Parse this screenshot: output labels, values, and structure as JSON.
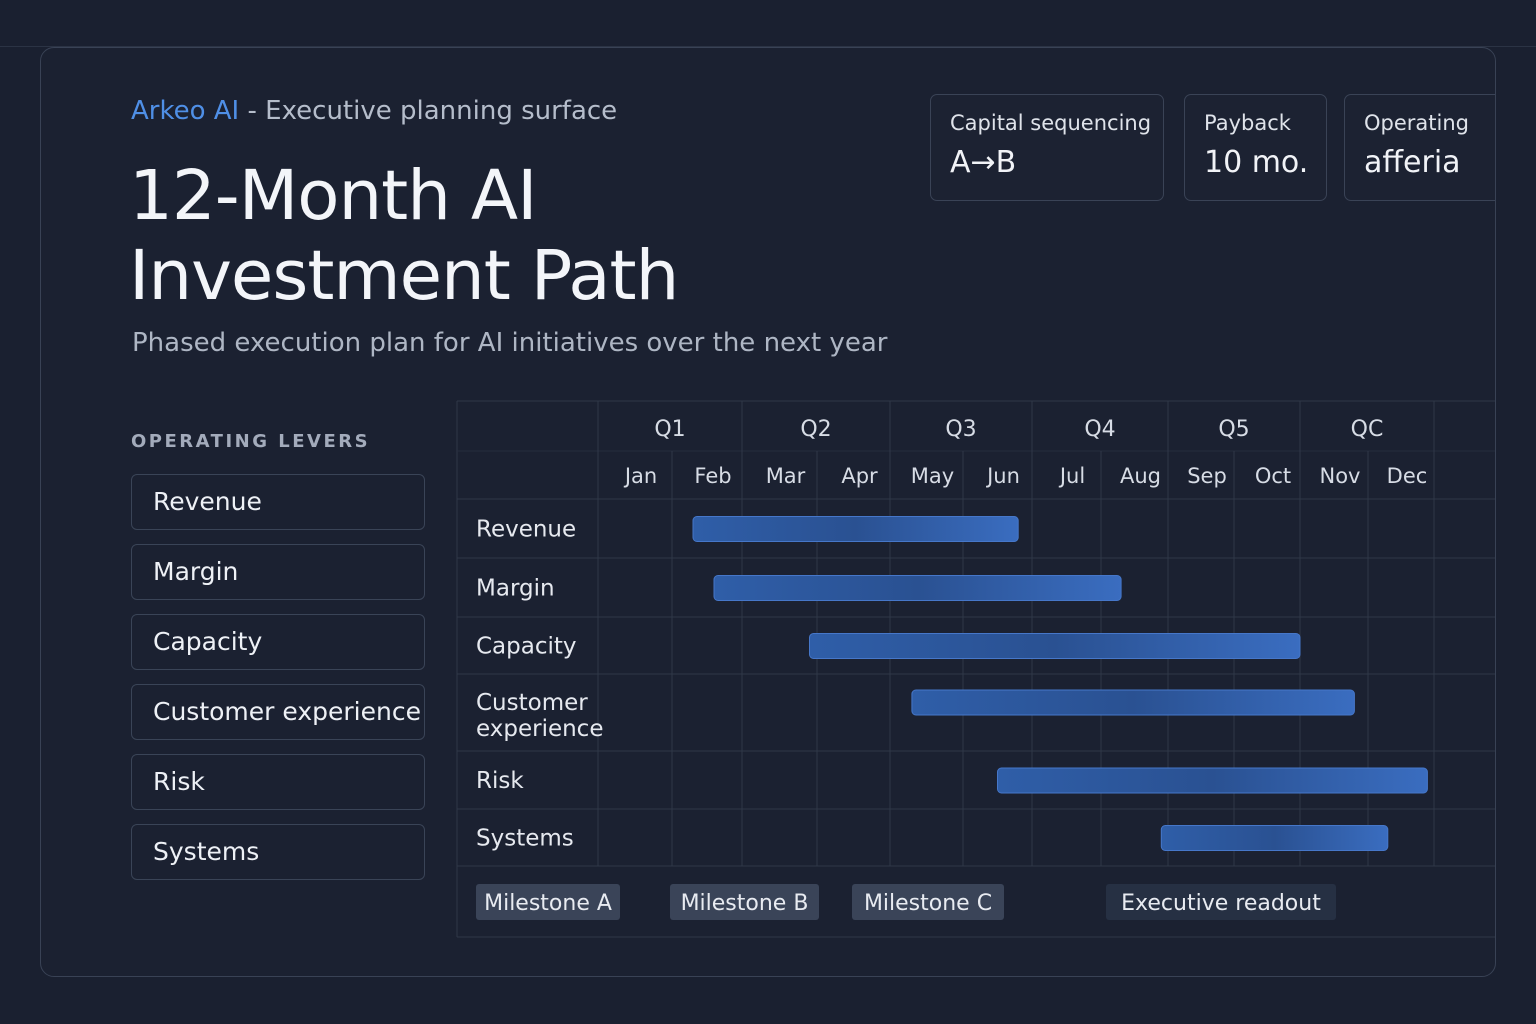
{
  "header": {
    "brand": "Arkeo AI",
    "eyebrow_rest": " - Executive planning surface",
    "title_line1": "12-Month AI",
    "title_line2": "Investment Path",
    "subtitle": "Phased execution plan for AI initiatives over the next year"
  },
  "kpis": [
    {
      "label": "Capital sequencing",
      "value": "A→B"
    },
    {
      "label": "Payback",
      "value": "10 mo."
    },
    {
      "label": "Operating",
      "value": "afferia"
    }
  ],
  "levers": {
    "title": "OPERATING LEVERS",
    "items": [
      "Revenue",
      "Margin",
      "Capacity",
      "Customer experience",
      "Risk",
      "Systems"
    ]
  },
  "colors": {
    "accent": "#4f8fe6",
    "bar": "#3566b3",
    "grid": "#2f3748",
    "milestone_bg": "#3a4458"
  },
  "chart_data": {
    "type": "gantt",
    "title": "",
    "quarters": [
      "Q1",
      "Q2",
      "Q3",
      "Q4",
      "Q5",
      "QC"
    ],
    "months": [
      "Jan",
      "Feb",
      "Mar",
      "Apr",
      "May",
      "Jun",
      "Jul",
      "Aug",
      "Sep",
      "Oct",
      "Nov",
      "Dec"
    ],
    "rows": [
      {
        "label": "Revenue",
        "start": 2.3,
        "end": 6.8
      },
      {
        "label": "Margin",
        "start": 2.6,
        "end": 8.3
      },
      {
        "label": "Capacity",
        "start": 3.9,
        "end": 11.0
      },
      {
        "label": "Customer experience",
        "start": 5.3,
        "end": 11.8
      },
      {
        "label": "Risk",
        "start": 6.5,
        "end": 12.9
      },
      {
        "label": "Systems",
        "start": 8.9,
        "end": 12.3
      }
    ],
    "milestones": [
      "Milestone A",
      "Milestone B",
      "Milestone C",
      "Executive readout"
    ]
  }
}
